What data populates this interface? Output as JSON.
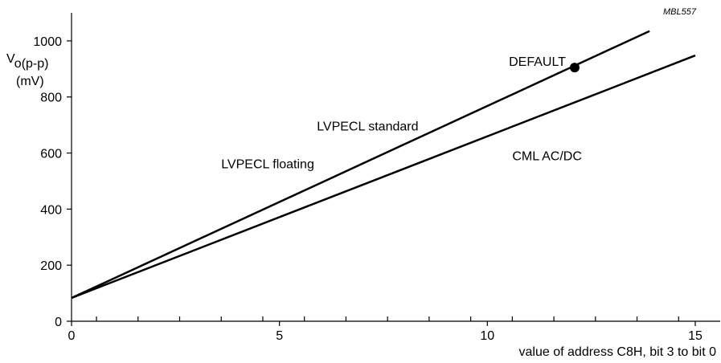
{
  "figure_code": "MBL557",
  "chart_data": {
    "type": "line",
    "ylabel_main": "V",
    "ylabel_sub": "o(p-p)",
    "ylabel_unit": "(mV)",
    "xlabel": "value of address C8H, bit 3 to bit 0",
    "xlim": [
      0,
      15.6
    ],
    "ylim": [
      0,
      1100
    ],
    "x_ticks": [
      0,
      5,
      10,
      15
    ],
    "x_minor_ticks": [
      0.6,
      1.6,
      2.6,
      3.6,
      4.6,
      5.6,
      6.6,
      7.6,
      8.6,
      9.6,
      10.6,
      11.6,
      12.6,
      13.6,
      14.6
    ],
    "y_ticks": [
      0,
      200,
      400,
      600,
      800,
      1000
    ],
    "grid": false,
    "series": [
      {
        "x": [
          0,
          13.9
        ],
        "values": [
          83,
          1035
        ]
      },
      {
        "x": [
          0,
          15
        ],
        "values": [
          83,
          948
        ]
      }
    ],
    "markers": [
      {
        "x": 12.1,
        "y": 905,
        "label": "DEFAULT"
      }
    ],
    "annotations": [
      {
        "text": "LVPECL standard",
        "x": 5.9,
        "y": 680
      },
      {
        "text": "LVPECL floating",
        "x": 3.6,
        "y": 545
      },
      {
        "text": "CML AC/DC",
        "x": 10.6,
        "y": 575
      }
    ]
  }
}
